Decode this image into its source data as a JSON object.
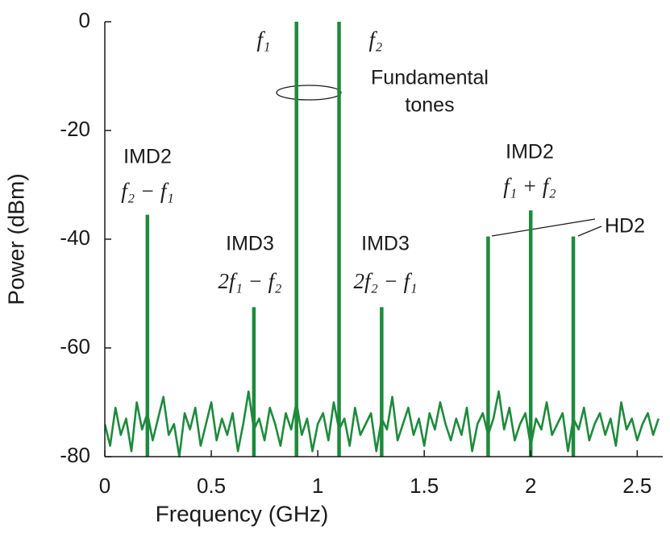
{
  "chart_data": {
    "type": "line",
    "xlabel": "Frequency (GHz)",
    "ylabel": "Power (dBm)",
    "xlim": [
      0,
      2.62
    ],
    "ylim": [
      -80,
      0
    ],
    "xticks": [
      0,
      0.5,
      1,
      1.5,
      2,
      2.5
    ],
    "yticks": [
      0,
      -20,
      -40,
      -60,
      -80
    ],
    "series": [
      {
        "color": "#1e8a3c",
        "x": [
          0,
          0.025,
          0.05,
          0.075,
          0.1,
          0.125,
          0.15,
          0.175,
          0.2,
          0.225,
          0.25,
          0.275,
          0.3,
          0.325,
          0.35,
          0.375,
          0.4,
          0.425,
          0.45,
          0.475,
          0.5,
          0.525,
          0.55,
          0.575,
          0.6,
          0.625,
          0.65,
          0.675,
          0.7,
          0.725,
          0.75,
          0.775,
          0.8,
          0.825,
          0.85,
          0.875,
          0.9,
          0.925,
          0.95,
          0.975,
          1,
          1.025,
          1.05,
          1.075,
          1.1,
          1.125,
          1.15,
          1.175,
          1.2,
          1.225,
          1.25,
          1.275,
          1.3,
          1.325,
          1.35,
          1.375,
          1.4,
          1.425,
          1.45,
          1.475,
          1.5,
          1.525,
          1.55,
          1.575,
          1.6,
          1.625,
          1.65,
          1.675,
          1.7,
          1.725,
          1.75,
          1.775,
          1.8,
          1.825,
          1.85,
          1.875,
          1.9,
          1.925,
          1.95,
          1.975,
          2,
          2.025,
          2.05,
          2.075,
          2.1,
          2.125,
          2.15,
          2.175,
          2.2,
          2.225,
          2.25,
          2.275,
          2.3,
          2.325,
          2.35,
          2.375,
          2.4,
          2.425,
          2.45,
          2.475,
          2.5,
          2.525,
          2.55,
          2.575,
          2.6
        ],
        "values": [
          -74,
          -78,
          -71,
          -76,
          -73,
          -79,
          -70,
          -75,
          -72,
          -77,
          -73,
          -69,
          -76,
          -74,
          -80,
          -72,
          -75,
          -71,
          -78,
          -74,
          -70,
          -77,
          -73,
          -76,
          -72,
          -79,
          -74,
          -68,
          -75,
          -73,
          -77,
          -71,
          -74,
          -78,
          -72,
          -75,
          -70,
          -76,
          -73,
          -79,
          -74,
          -72,
          -77,
          -70,
          -75,
          -73,
          -78,
          -71,
          -76,
          -74,
          -72,
          -79,
          -73,
          -75,
          -69,
          -77,
          -74,
          -71,
          -76,
          -73,
          -78,
          -72,
          -75,
          -70,
          -74,
          -77,
          -73,
          -76,
          -71,
          -79,
          -74,
          -72,
          -76,
          -73,
          -68,
          -75,
          -71,
          -77,
          -74,
          -72,
          -78,
          -73,
          -75,
          -70,
          -76,
          -74,
          -72,
          -79,
          -73,
          -75,
          -71,
          -77,
          -74,
          -72,
          -76,
          -73,
          -78,
          -70,
          -75,
          -73,
          -77,
          -74,
          -72,
          -76,
          -73
        ]
      },
      {
        "color": "#1e8a3c",
        "x": [
          0.2,
          0.7,
          0.9,
          1.1,
          1.3,
          1.8,
          2.0,
          2.2
        ],
        "values": [
          -35.5,
          -52.5,
          0,
          0,
          -52.5,
          -39.5,
          -34.7,
          -39.5
        ]
      }
    ],
    "annotations": [
      {
        "lines": [
          "f₁"
        ],
        "color": "#1a1a1a"
      },
      {
        "lines": [
          "f₂"
        ],
        "color": "#1a1a1a"
      },
      {
        "lines": [
          "Fundamental",
          "tones"
        ],
        "color": "#1a1a1a"
      },
      {
        "lines": [
          "IMD2",
          "f₂ − f₁"
        ],
        "color": "#2176bd"
      },
      {
        "lines": [
          "IMD3",
          "2f₁ − f₂"
        ],
        "color": "#e1262d"
      },
      {
        "lines": [
          "IMD3",
          "2f₂ − f₁"
        ],
        "color": "#e1262d"
      },
      {
        "lines": [
          "IMD2",
          "f₁ + f₂"
        ],
        "color": "#2176bd"
      },
      {
        "lines": [
          "HD2"
        ],
        "color": "#1a1a1a"
      }
    ]
  }
}
